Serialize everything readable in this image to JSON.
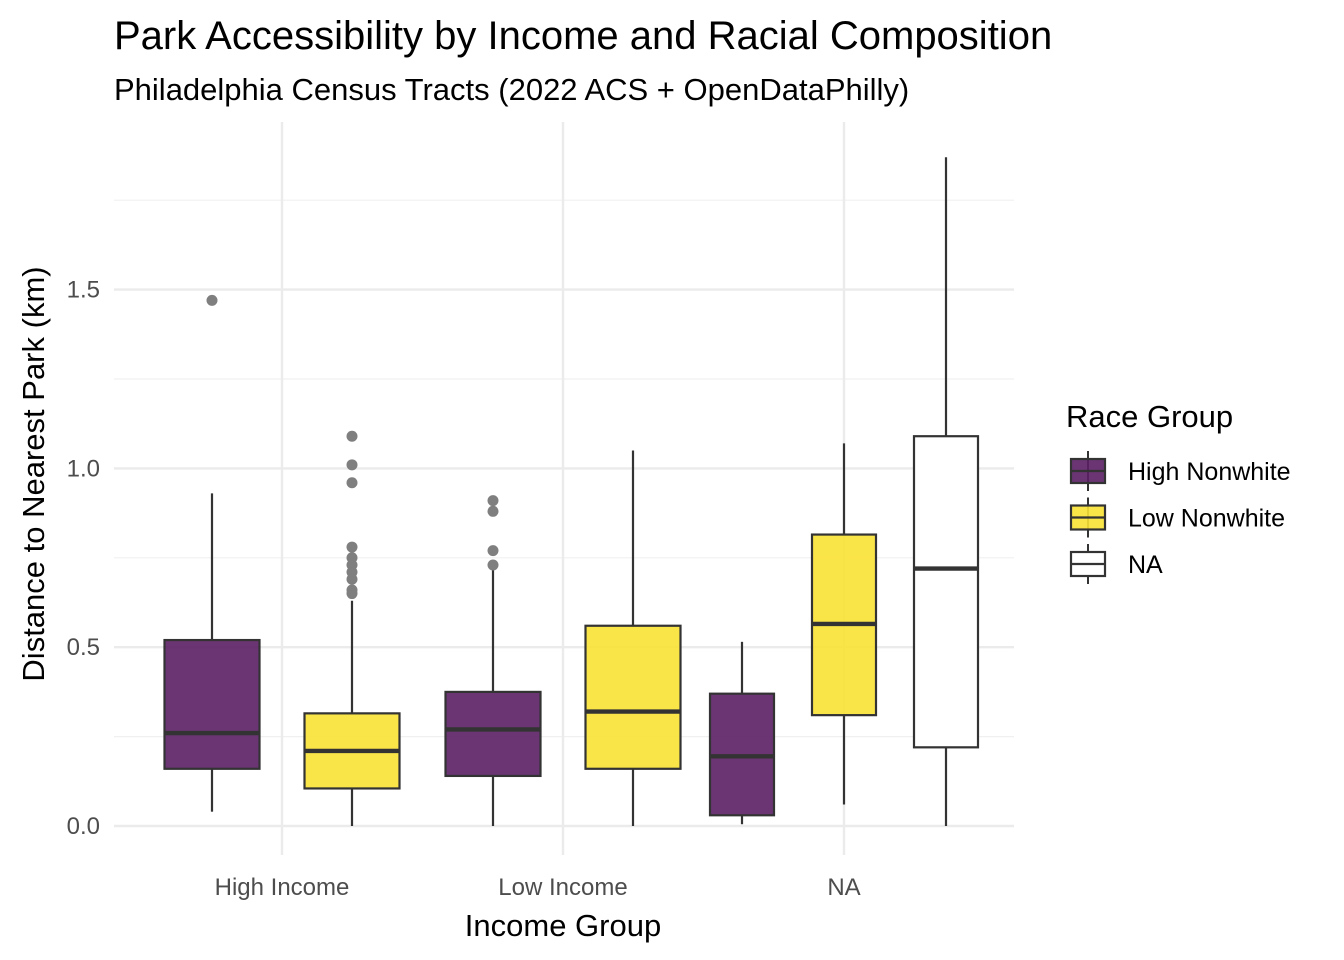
{
  "chart_data": {
    "type": "boxplot",
    "title": "Park Accessibility by Income and Racial Composition",
    "subtitle": "Philadelphia Census Tracts (2022 ACS + OpenDataPhilly)",
    "xlabel": "Income Group",
    "ylabel": "Distance to Nearest Park (km)",
    "ylim": [
      -0.05,
      1.95
    ],
    "yticks": [
      0.0,
      0.5,
      1.0,
      1.5
    ],
    "ytick_labels": [
      "0.0",
      "0.5",
      "1.0",
      "1.5"
    ],
    "categories": [
      "High Income",
      "Low Income",
      "NA"
    ],
    "legend": {
      "title": "Race Group",
      "position": "right",
      "entries": [
        {
          "label": "High Nonwhite",
          "color": "#5a1f63"
        },
        {
          "label": "Low Nonwhite",
          "color": "#f9e235"
        },
        {
          "label": "NA",
          "color": "#ffffff"
        }
      ]
    },
    "grid": true,
    "series": [
      {
        "name": "High Nonwhite",
        "color": "#5a1f63",
        "boxes": [
          {
            "category": "High Income",
            "whisker_low": 0.04,
            "q1": 0.16,
            "median": 0.26,
            "q3": 0.52,
            "whisker_high": 0.93,
            "outliers": [
              1.47
            ]
          },
          {
            "category": "Low Income",
            "whisker_low": 0.0,
            "q1": 0.14,
            "median": 0.27,
            "q3": 0.375,
            "whisker_high": 0.73,
            "outliers": [
              0.73,
              0.77,
              0.88,
              0.91
            ]
          },
          {
            "category": "NA",
            "whisker_low": 0.005,
            "q1": 0.03,
            "median": 0.195,
            "q3": 0.37,
            "whisker_high": 0.515,
            "outliers": []
          }
        ]
      },
      {
        "name": "Low Nonwhite",
        "color": "#f9e235",
        "boxes": [
          {
            "category": "High Income",
            "whisker_low": 0.0,
            "q1": 0.105,
            "median": 0.21,
            "q3": 0.315,
            "whisker_high": 0.63,
            "outliers": [
              0.65,
              0.66,
              0.69,
              0.71,
              0.73,
              0.75,
              0.78,
              0.96,
              1.01,
              1.09
            ]
          },
          {
            "category": "Low Income",
            "whisker_low": 0.0,
            "q1": 0.16,
            "median": 0.32,
            "q3": 0.56,
            "whisker_high": 1.05,
            "outliers": []
          },
          {
            "category": "NA",
            "whisker_low": 0.06,
            "q1": 0.31,
            "median": 0.565,
            "q3": 0.815,
            "whisker_high": 1.07,
            "outliers": []
          }
        ]
      },
      {
        "name": "NA",
        "color": "#ffffff",
        "boxes": [
          {
            "category": "NA",
            "whisker_low": 0.0,
            "q1": 0.22,
            "median": 0.72,
            "q3": 1.09,
            "whisker_high": 1.87,
            "outliers": []
          }
        ]
      }
    ]
  }
}
